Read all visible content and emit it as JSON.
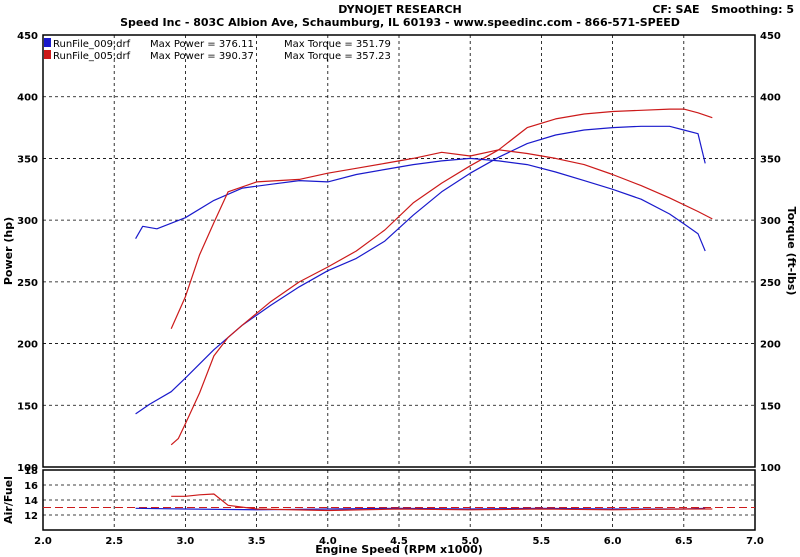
{
  "header": {
    "title": "DYNOJET RESEARCH",
    "subtitle": "Speed Inc - 803C Albion Ave, Schaumburg, IL 60193 - www.speedinc.com - 866-571-SPEED",
    "cf_label": "CF: SAE",
    "smoothing_label": "Smoothing: 5"
  },
  "chart_data": [
    {
      "type": "line",
      "xlabel": "Engine Speed (RPM x1000)",
      "ylabel": "Power (hp)",
      "y2label": "Torque (ft-lbs)",
      "xlim": [
        2.0,
        7.0
      ],
      "ylim": [
        100,
        450
      ],
      "y2lim": [
        100,
        450
      ],
      "xticks": [
        "2.0",
        "2.5",
        "3.0",
        "3.5",
        "4.0",
        "4.5",
        "5.0",
        "5.5",
        "6.0",
        "6.5",
        "7.0"
      ],
      "yticks": [
        "100",
        "150",
        "200",
        "250",
        "300",
        "350",
        "400",
        "450"
      ],
      "grid": true,
      "legend": [
        {
          "file": "RunFile_009.drf",
          "power_text": "Max Power = 376.11",
          "torque_text": "Max Torque = 351.79",
          "color": "#1a1acc"
        },
        {
          "file": "RunFile_005.drf",
          "power_text": "Max Power = 390.37",
          "torque_text": "Max Torque = 357.23",
          "color": "#cc1a1a"
        }
      ],
      "series": [
        {
          "name": "RunFile_009.drf Power",
          "color": "#1a1acc",
          "x": [
            2.65,
            2.75,
            2.9,
            3.0,
            3.2,
            3.4,
            3.6,
            3.8,
            4.0,
            4.2,
            4.4,
            4.6,
            4.8,
            5.0,
            5.2,
            5.4,
            5.6,
            5.8,
            6.0,
            6.2,
            6.4,
            6.5,
            6.6,
            6.65
          ],
          "y": [
            143,
            151,
            161,
            172,
            195,
            215,
            231,
            246,
            259,
            269,
            283,
            304,
            323,
            338,
            351,
            362,
            369,
            373,
            375,
            376,
            376,
            373,
            370,
            346
          ]
        },
        {
          "name": "RunFile_005.drf Power",
          "color": "#cc1a1a",
          "x": [
            2.9,
            2.95,
            3.0,
            3.1,
            3.2,
            3.3,
            3.4,
            3.6,
            3.8,
            4.0,
            4.2,
            4.4,
            4.6,
            4.8,
            5.0,
            5.2,
            5.4,
            5.6,
            5.8,
            6.0,
            6.2,
            6.4,
            6.5,
            6.6,
            6.7
          ],
          "y": [
            118,
            123,
            135,
            160,
            190,
            205,
            215,
            234,
            250,
            262,
            275,
            292,
            314,
            330,
            344,
            357,
            375,
            382,
            386,
            388,
            389,
            390,
            390,
            387,
            383
          ]
        },
        {
          "name": "RunFile_009.drf Torque",
          "color": "#1a1acc",
          "x": [
            2.65,
            2.7,
            2.8,
            3.0,
            3.2,
            3.4,
            3.6,
            3.8,
            4.0,
            4.2,
            4.4,
            4.6,
            4.8,
            5.0,
            5.2,
            5.4,
            5.6,
            5.8,
            6.0,
            6.2,
            6.4,
            6.5,
            6.6,
            6.65
          ],
          "y": [
            285,
            295,
            293,
            302,
            316,
            326,
            329,
            332,
            331,
            337,
            341,
            345,
            348,
            350,
            348,
            345,
            339,
            332,
            325,
            317,
            305,
            297,
            289,
            275
          ]
        },
        {
          "name": "RunFile_005.drf Torque",
          "color": "#cc1a1a",
          "x": [
            2.9,
            3.0,
            3.1,
            3.2,
            3.3,
            3.5,
            3.8,
            4.0,
            4.2,
            4.4,
            4.6,
            4.8,
            5.0,
            5.2,
            5.4,
            5.6,
            5.8,
            6.0,
            6.2,
            6.4,
            6.6,
            6.7
          ],
          "y": [
            212,
            238,
            272,
            298,
            323,
            331,
            333,
            338,
            342,
            346,
            350,
            355,
            352,
            357,
            354,
            350,
            345,
            337,
            328,
            318,
            307,
            301
          ]
        }
      ]
    },
    {
      "type": "line",
      "ylabel": "Air/Fuel",
      "xlim": [
        2.0,
        7.0
      ],
      "ylim": [
        10,
        18
      ],
      "yticks": [
        "12",
        "14",
        "16",
        "18"
      ],
      "reference_line": 13,
      "series": [
        {
          "name": "RunFile_009.drf Air/Fuel",
          "color": "#1a1acc",
          "x": [
            2.65,
            3.0,
            3.5,
            4.0,
            4.5,
            5.0,
            5.5,
            6.0,
            6.5,
            6.65
          ],
          "y": [
            12.9,
            12.8,
            12.7,
            12.8,
            12.9,
            12.8,
            12.9,
            12.8,
            12.8,
            12.9
          ]
        },
        {
          "name": "RunFile_005.drf Air/Fuel",
          "color": "#cc1a1a",
          "x": [
            2.9,
            3.0,
            3.1,
            3.2,
            3.3,
            3.5,
            4.0,
            4.5,
            5.0,
            5.5,
            6.0,
            6.5,
            6.7
          ],
          "y": [
            14.5,
            14.5,
            14.7,
            14.8,
            13.3,
            12.8,
            12.6,
            12.8,
            12.7,
            12.8,
            12.7,
            12.8,
            12.8
          ]
        }
      ]
    }
  ]
}
